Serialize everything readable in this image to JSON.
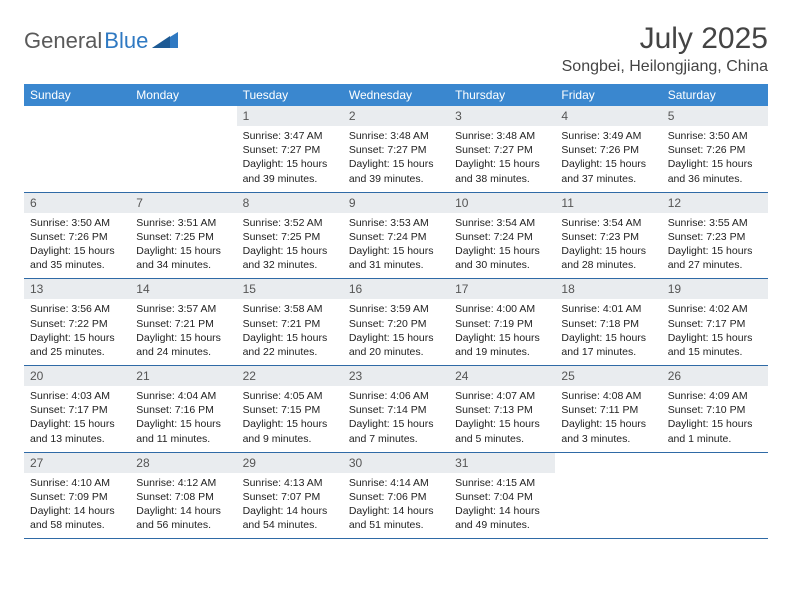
{
  "brand": {
    "part1": "General",
    "part2": "Blue"
  },
  "title": "July 2025",
  "location": "Songbei, Heilongjiang, China",
  "colors": {
    "header_bg": "#3a87cf",
    "header_text": "#ffffff",
    "daynum_bg": "#e9ecef",
    "row_border": "#2f6aa6",
    "title_color": "#444444",
    "body_text": "#222222",
    "logo_gray": "#5a5a5a",
    "logo_blue": "#2f79c2",
    "background": "#ffffff"
  },
  "typography": {
    "title_fontsize": 30,
    "location_fontsize": 16,
    "dow_fontsize": 12,
    "daynum_fontsize": 12,
    "body_fontsize": 10.5
  },
  "dow": [
    "Sunday",
    "Monday",
    "Tuesday",
    "Wednesday",
    "Thursday",
    "Friday",
    "Saturday"
  ],
  "weeks": [
    [
      {
        "n": "",
        "sr": "",
        "ss": "",
        "dl": ""
      },
      {
        "n": "",
        "sr": "",
        "ss": "",
        "dl": ""
      },
      {
        "n": "1",
        "sr": "Sunrise: 3:47 AM",
        "ss": "Sunset: 7:27 PM",
        "dl": "Daylight: 15 hours and 39 minutes."
      },
      {
        "n": "2",
        "sr": "Sunrise: 3:48 AM",
        "ss": "Sunset: 7:27 PM",
        "dl": "Daylight: 15 hours and 39 minutes."
      },
      {
        "n": "3",
        "sr": "Sunrise: 3:48 AM",
        "ss": "Sunset: 7:27 PM",
        "dl": "Daylight: 15 hours and 38 minutes."
      },
      {
        "n": "4",
        "sr": "Sunrise: 3:49 AM",
        "ss": "Sunset: 7:26 PM",
        "dl": "Daylight: 15 hours and 37 minutes."
      },
      {
        "n": "5",
        "sr": "Sunrise: 3:50 AM",
        "ss": "Sunset: 7:26 PM",
        "dl": "Daylight: 15 hours and 36 minutes."
      }
    ],
    [
      {
        "n": "6",
        "sr": "Sunrise: 3:50 AM",
        "ss": "Sunset: 7:26 PM",
        "dl": "Daylight: 15 hours and 35 minutes."
      },
      {
        "n": "7",
        "sr": "Sunrise: 3:51 AM",
        "ss": "Sunset: 7:25 PM",
        "dl": "Daylight: 15 hours and 34 minutes."
      },
      {
        "n": "8",
        "sr": "Sunrise: 3:52 AM",
        "ss": "Sunset: 7:25 PM",
        "dl": "Daylight: 15 hours and 32 minutes."
      },
      {
        "n": "9",
        "sr": "Sunrise: 3:53 AM",
        "ss": "Sunset: 7:24 PM",
        "dl": "Daylight: 15 hours and 31 minutes."
      },
      {
        "n": "10",
        "sr": "Sunrise: 3:54 AM",
        "ss": "Sunset: 7:24 PM",
        "dl": "Daylight: 15 hours and 30 minutes."
      },
      {
        "n": "11",
        "sr": "Sunrise: 3:54 AM",
        "ss": "Sunset: 7:23 PM",
        "dl": "Daylight: 15 hours and 28 minutes."
      },
      {
        "n": "12",
        "sr": "Sunrise: 3:55 AM",
        "ss": "Sunset: 7:23 PM",
        "dl": "Daylight: 15 hours and 27 minutes."
      }
    ],
    [
      {
        "n": "13",
        "sr": "Sunrise: 3:56 AM",
        "ss": "Sunset: 7:22 PM",
        "dl": "Daylight: 15 hours and 25 minutes."
      },
      {
        "n": "14",
        "sr": "Sunrise: 3:57 AM",
        "ss": "Sunset: 7:21 PM",
        "dl": "Daylight: 15 hours and 24 minutes."
      },
      {
        "n": "15",
        "sr": "Sunrise: 3:58 AM",
        "ss": "Sunset: 7:21 PM",
        "dl": "Daylight: 15 hours and 22 minutes."
      },
      {
        "n": "16",
        "sr": "Sunrise: 3:59 AM",
        "ss": "Sunset: 7:20 PM",
        "dl": "Daylight: 15 hours and 20 minutes."
      },
      {
        "n": "17",
        "sr": "Sunrise: 4:00 AM",
        "ss": "Sunset: 7:19 PM",
        "dl": "Daylight: 15 hours and 19 minutes."
      },
      {
        "n": "18",
        "sr": "Sunrise: 4:01 AM",
        "ss": "Sunset: 7:18 PM",
        "dl": "Daylight: 15 hours and 17 minutes."
      },
      {
        "n": "19",
        "sr": "Sunrise: 4:02 AM",
        "ss": "Sunset: 7:17 PM",
        "dl": "Daylight: 15 hours and 15 minutes."
      }
    ],
    [
      {
        "n": "20",
        "sr": "Sunrise: 4:03 AM",
        "ss": "Sunset: 7:17 PM",
        "dl": "Daylight: 15 hours and 13 minutes."
      },
      {
        "n": "21",
        "sr": "Sunrise: 4:04 AM",
        "ss": "Sunset: 7:16 PM",
        "dl": "Daylight: 15 hours and 11 minutes."
      },
      {
        "n": "22",
        "sr": "Sunrise: 4:05 AM",
        "ss": "Sunset: 7:15 PM",
        "dl": "Daylight: 15 hours and 9 minutes."
      },
      {
        "n": "23",
        "sr": "Sunrise: 4:06 AM",
        "ss": "Sunset: 7:14 PM",
        "dl": "Daylight: 15 hours and 7 minutes."
      },
      {
        "n": "24",
        "sr": "Sunrise: 4:07 AM",
        "ss": "Sunset: 7:13 PM",
        "dl": "Daylight: 15 hours and 5 minutes."
      },
      {
        "n": "25",
        "sr": "Sunrise: 4:08 AM",
        "ss": "Sunset: 7:11 PM",
        "dl": "Daylight: 15 hours and 3 minutes."
      },
      {
        "n": "26",
        "sr": "Sunrise: 4:09 AM",
        "ss": "Sunset: 7:10 PM",
        "dl": "Daylight: 15 hours and 1 minute."
      }
    ],
    [
      {
        "n": "27",
        "sr": "Sunrise: 4:10 AM",
        "ss": "Sunset: 7:09 PM",
        "dl": "Daylight: 14 hours and 58 minutes."
      },
      {
        "n": "28",
        "sr": "Sunrise: 4:12 AM",
        "ss": "Sunset: 7:08 PM",
        "dl": "Daylight: 14 hours and 56 minutes."
      },
      {
        "n": "29",
        "sr": "Sunrise: 4:13 AM",
        "ss": "Sunset: 7:07 PM",
        "dl": "Daylight: 14 hours and 54 minutes."
      },
      {
        "n": "30",
        "sr": "Sunrise: 4:14 AM",
        "ss": "Sunset: 7:06 PM",
        "dl": "Daylight: 14 hours and 51 minutes."
      },
      {
        "n": "31",
        "sr": "Sunrise: 4:15 AM",
        "ss": "Sunset: 7:04 PM",
        "dl": "Daylight: 14 hours and 49 minutes."
      },
      {
        "n": "",
        "sr": "",
        "ss": "",
        "dl": ""
      },
      {
        "n": "",
        "sr": "",
        "ss": "",
        "dl": ""
      }
    ]
  ]
}
